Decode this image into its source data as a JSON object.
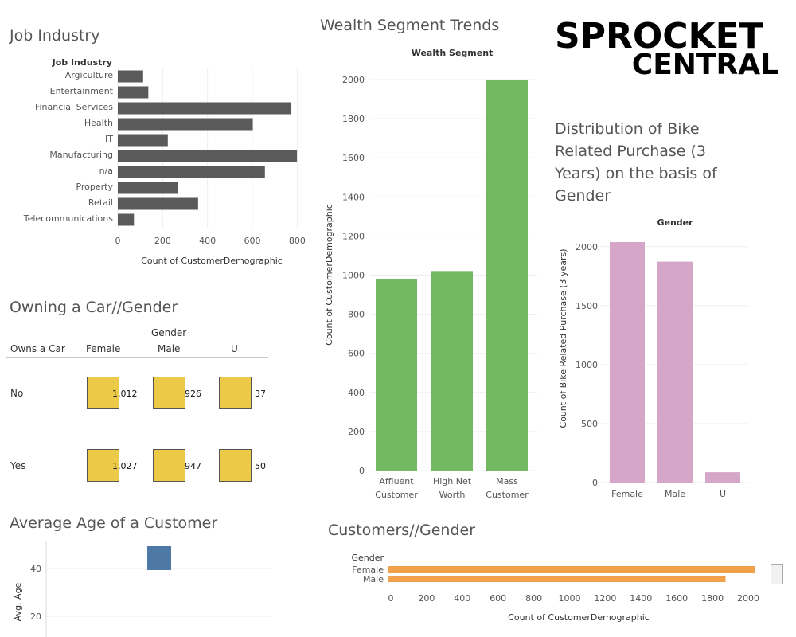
{
  "logo": {
    "line1": "SPROCKET",
    "line2": "CENTRAL"
  },
  "job_industry": {
    "title": "Job Industry",
    "header": "Job Industry",
    "xlabel": "Count of CustomerDemographic",
    "ticks": [
      "0",
      "200",
      "400",
      "600",
      "800"
    ]
  },
  "wealth": {
    "title": "Wealth Segment Trends",
    "header": "Wealth Segment",
    "ylabel": "Count of CustomerDemographic",
    "ticks": [
      "0",
      "200",
      "400",
      "600",
      "800",
      "1000",
      "1200",
      "1400",
      "1600",
      "1800",
      "2000"
    ]
  },
  "bike": {
    "title": "Distribution of Bike Related Purchase (3 Years) on the basis of Gender",
    "header": "Gender",
    "ylabel": "Count of Bike Related Purchase (3 years)",
    "ticks": [
      "0",
      "500",
      "1000",
      "1500",
      "2000"
    ]
  },
  "car": {
    "title": "Owning a Car//Gender",
    "gender_header": "Gender",
    "row_header": "Owns a Car",
    "columns": [
      "Female",
      "Male",
      "U"
    ],
    "rows": [
      {
        "label": "No",
        "values": [
          "1,012",
          "926",
          "37"
        ]
      },
      {
        "label": "Yes",
        "values": [
          "1,027",
          "947",
          "50"
        ]
      }
    ]
  },
  "age": {
    "title": "Average Age of a Customer",
    "ylabel": "Avg. Age",
    "ticks": [
      "40",
      "20"
    ]
  },
  "customers": {
    "title": "Customers//Gender",
    "header": "Gender",
    "xlabel": "Count of CustomerDemographic",
    "ticks": [
      "0",
      "200",
      "400",
      "600",
      "800",
      "1000",
      "1200",
      "1400",
      "1600",
      "1800",
      "2000"
    ]
  },
  "colors": {
    "job": "#5a5a5a",
    "wealth": "#72b962",
    "bike": "#d5a6c8",
    "car": "#ecc946",
    "age": "#4e79a7",
    "customers": "#f2a14b"
  },
  "chart_data": [
    {
      "type": "bar",
      "title": "Job Industry",
      "orientation": "horizontal",
      "categories": [
        "Argiculture",
        "Entertainment",
        "Financial Services",
        "Health",
        "IT",
        "Manufacturing",
        "n/a",
        "Property",
        "Retail",
        "Telecommunications"
      ],
      "values": [
        113,
        136,
        774,
        602,
        223,
        799,
        656,
        267,
        358,
        72
      ],
      "xlabel": "Count of CustomerDemographic",
      "xlim": [
        0,
        820
      ]
    },
    {
      "type": "bar",
      "title": "Wealth Segment Trends",
      "categories": [
        "Affluent Customer",
        "High Net Worth",
        "Mass Customer"
      ],
      "values": [
        979,
        1021,
        2000
      ],
      "ylabel": "Count of CustomerDemographic",
      "ylim": [
        0,
        2000
      ]
    },
    {
      "type": "bar",
      "title": "Distribution of Bike Related Purchase (3 Years) on the basis of Gender",
      "categories": [
        "Female",
        "Male",
        "U"
      ],
      "values": [
        2039,
        1873,
        87
      ],
      "ylabel": "Count of Bike Related Purchase (3 years)",
      "ylim": [
        0,
        2100
      ]
    },
    {
      "type": "table",
      "title": "Owning a Car//Gender",
      "columns": [
        "Female",
        "Male",
        "U"
      ],
      "rows": [
        "No",
        "Yes"
      ],
      "values": [
        [
          1012,
          926,
          37
        ],
        [
          1027,
          947,
          50
        ]
      ]
    },
    {
      "type": "bar",
      "title": "Average Age of a Customer",
      "values": [
        40
      ],
      "ylabel": "Avg. Age"
    },
    {
      "type": "bar",
      "title": "Customers//Gender",
      "orientation": "horizontal",
      "categories": [
        "Female",
        "Male"
      ],
      "values": [
        2039,
        1873
      ],
      "xlabel": "Count of CustomerDemographic",
      "xlim": [
        0,
        2050
      ]
    }
  ]
}
